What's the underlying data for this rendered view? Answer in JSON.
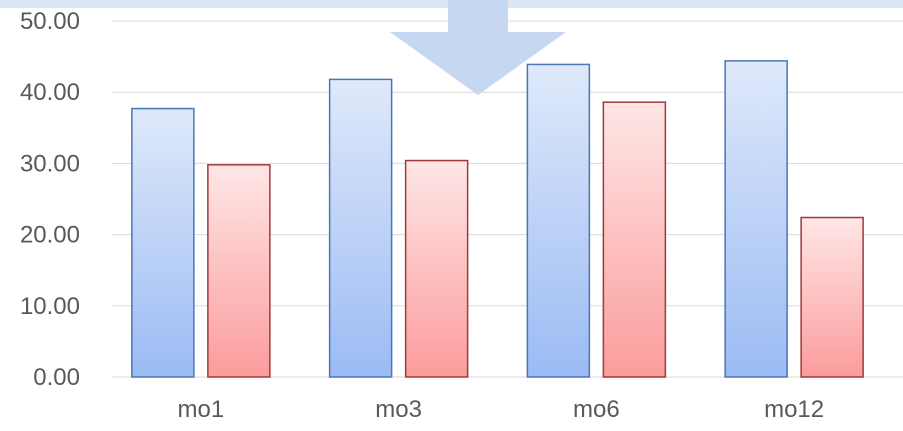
{
  "chart_data": {
    "type": "bar",
    "categories": [
      "mo1",
      "mo3",
      "mo6",
      "mo12"
    ],
    "series": [
      {
        "values": [
          37.7,
          41.8,
          43.9,
          44.4
        ],
        "fill_top": "#dfe9fa",
        "fill_bottom": "#9bbbf4",
        "stroke": "#4a76b6"
      },
      {
        "values": [
          29.8,
          30.4,
          38.6,
          22.4
        ],
        "fill_top": "#ffe6e6",
        "fill_bottom": "#fb9c9c",
        "stroke": "#a03a3a"
      }
    ],
    "y_ticks": [
      "0.00",
      "10.00",
      "20.00",
      "30.00",
      "40.00",
      "50.00"
    ],
    "ylim": [
      0,
      50
    ],
    "grid": true,
    "decoration": {
      "arrow_color": "#c5d7f1",
      "band_color": "#dbe6f5"
    }
  }
}
